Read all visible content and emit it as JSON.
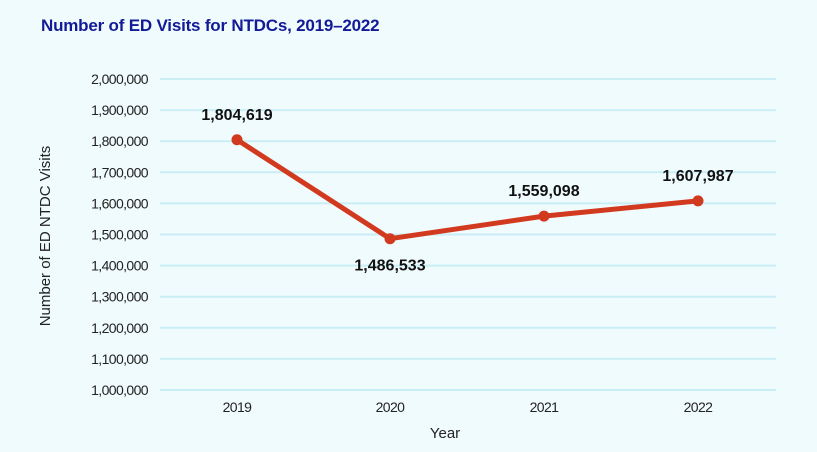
{
  "colors": {
    "title": "#131a96",
    "line": "#d23a1f",
    "grid": "#c9eef5",
    "background": "#f0fbfd"
  },
  "chart_data": {
    "type": "line",
    "title": "Number of ED Visits for NTDCs, 2019–2022",
    "xlabel": "Year",
    "ylabel": "Number of ED NTDC Visits",
    "categories": [
      "2019",
      "2020",
      "2021",
      "2022"
    ],
    "series": [
      {
        "name": "ED NTDC Visits",
        "values": [
          1804619,
          1486533,
          1559098,
          1607987
        ],
        "labels": [
          "1,804,619",
          "1,486,533",
          "1,559,098",
          "1,607,987"
        ],
        "label_positions": [
          "above",
          "below",
          "above",
          "above"
        ]
      }
    ],
    "ylim": [
      1000000,
      2000000
    ],
    "yticks": [
      1000000,
      1100000,
      1200000,
      1300000,
      1400000,
      1500000,
      1600000,
      1700000,
      1800000,
      1900000,
      2000000
    ],
    "ytick_labels": [
      "1,000,000",
      "1,100,000",
      "1,200,000",
      "1,300,000",
      "1,400,000",
      "1,500,000",
      "1,600,000",
      "1,700,000",
      "1,800,000",
      "1,900,000",
      "2,000,000"
    ],
    "grid": true,
    "legend": "none"
  }
}
